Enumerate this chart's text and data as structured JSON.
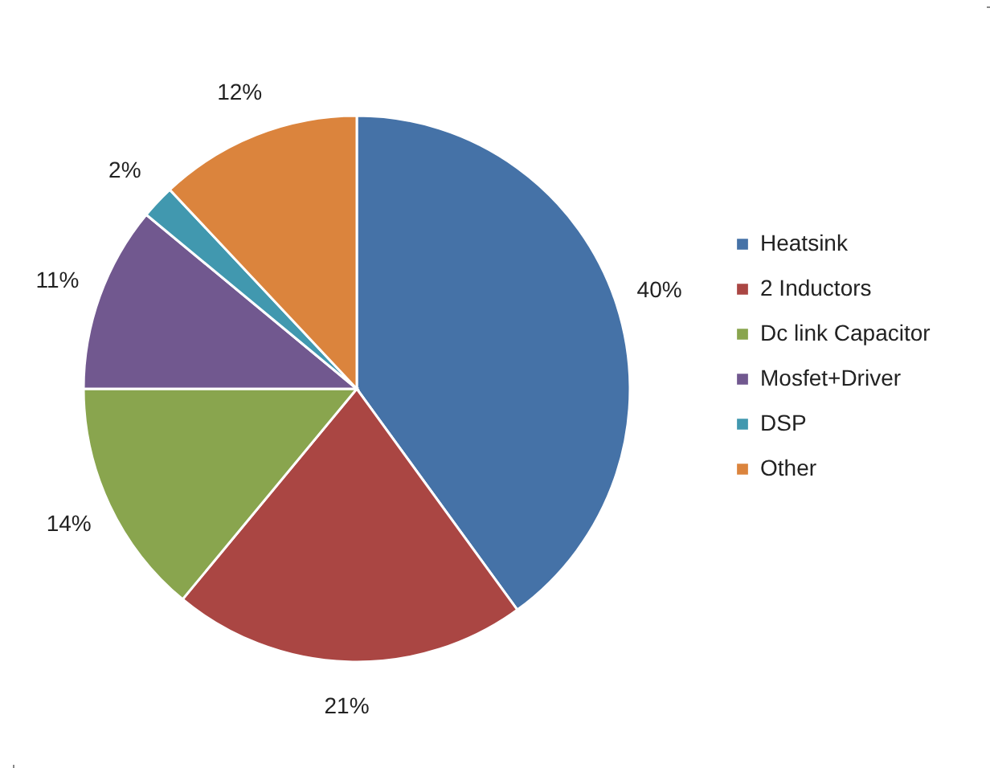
{
  "chart_data": {
    "type": "pie",
    "categories": [
      "Heatsink",
      "2 Inductors",
      "Dc link Capacitor",
      "Mosfet+Driver",
      "DSP",
      "Other"
    ],
    "values": [
      40,
      21,
      14,
      11,
      2,
      12
    ],
    "colors": [
      "#4572a7",
      "#aa4643",
      "#89a54e",
      "#71588f",
      "#4198af",
      "#db843d"
    ],
    "value_labels": [
      "40%",
      "21%",
      "14%",
      "11%",
      "2%",
      "12%"
    ],
    "legend": "right"
  }
}
